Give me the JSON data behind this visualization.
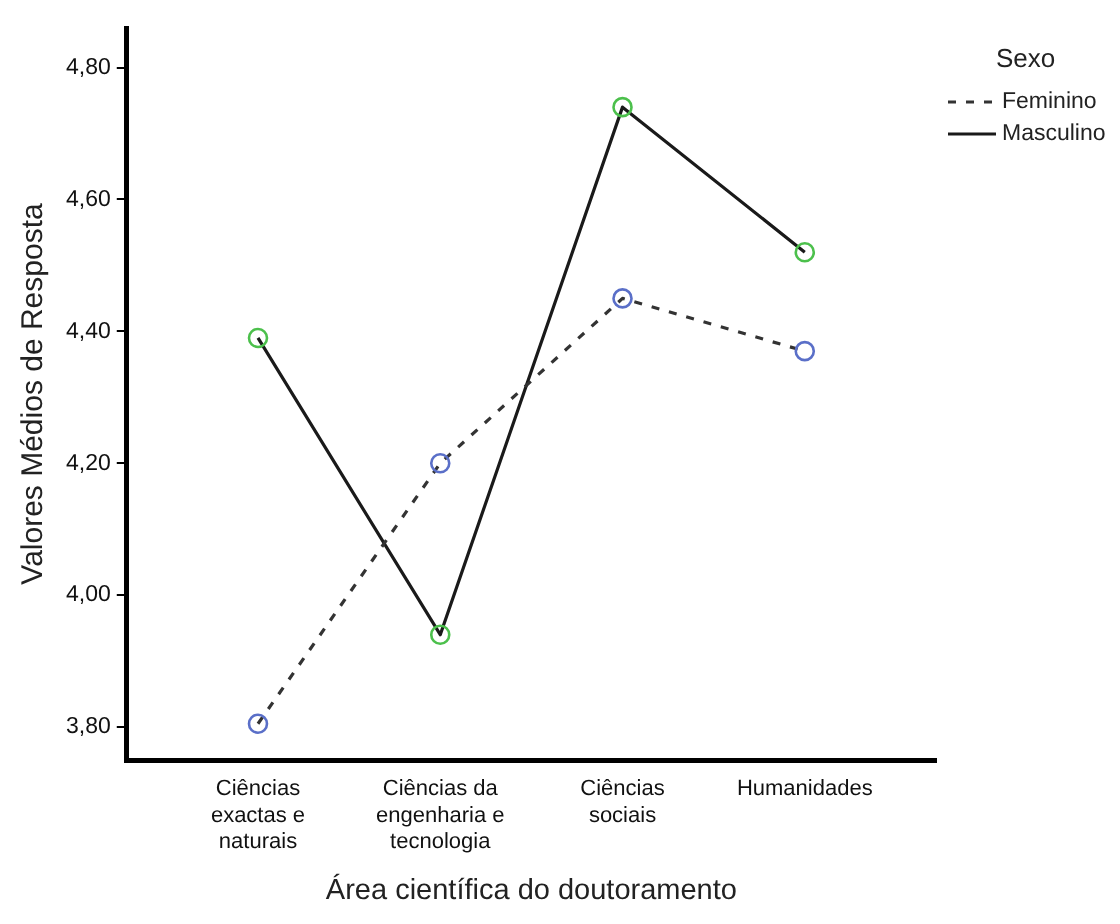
{
  "chart_data": {
    "type": "line",
    "xlabel": "Área científica do doutoramento",
    "ylabel": "Valores Médios de Resposta",
    "legend_title": "Sexo",
    "legend": "top right",
    "grid": false,
    "marker": "circle",
    "categories": [
      "Ciências exactas e naturais",
      "Ciências da engenharia e tecnologia",
      "Ciências sociais",
      "Humanidades"
    ],
    "ylim": [
      3.75,
      4.86
    ],
    "yticks": [
      {
        "value": 3.8,
        "label": "3,80"
      },
      {
        "value": 4.0,
        "label": "4,00"
      },
      {
        "value": 4.2,
        "label": "4,20"
      },
      {
        "value": 4.4,
        "label": "4,40"
      },
      {
        "value": 4.6,
        "label": "4,60"
      },
      {
        "value": 4.8,
        "label": "4,80"
      }
    ],
    "series": [
      {
        "name": "Feminino",
        "color": "#333333",
        "colors": [
          "#5a6fc8",
          "#5a6fc8",
          "#5a6fc8",
          "#5a6fc8"
        ],
        "line_style": "dashed",
        "values": [
          3.805,
          4.2,
          4.45,
          4.37
        ]
      },
      {
        "name": "Masculino",
        "color": "#1a1a1a",
        "colors": [
          "#4cc04c",
          "#4cc04c",
          "#4cc04c",
          "#4cc04c"
        ],
        "line_style": "solid",
        "values": [
          4.39,
          3.94,
          4.74,
          4.52
        ]
      }
    ]
  }
}
